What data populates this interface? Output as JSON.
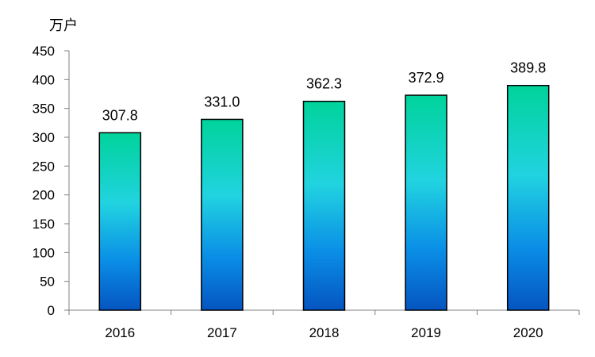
{
  "chart_data": {
    "type": "bar",
    "unit": "万户",
    "categories": [
      "2016",
      "2017",
      "2018",
      "2019",
      "2020"
    ],
    "values": [
      307.8,
      331.0,
      362.3,
      372.9,
      389.8
    ],
    "value_labels": [
      "307.8",
      "331.0",
      "362.3",
      "372.9",
      "389.8"
    ],
    "ylim": [
      0,
      450
    ],
    "yticks": [
      0,
      50,
      100,
      150,
      200,
      250,
      300,
      350,
      400,
      450
    ],
    "grid": false,
    "legend": "none",
    "colors": {
      "bar_top": "#00D39B",
      "bar_mid": "#21D3E0",
      "bar_low": "#0A8EE6",
      "bar_bottom": "#0555C0",
      "bar_outline": "#000000",
      "axis": "#7f7f7f"
    }
  }
}
